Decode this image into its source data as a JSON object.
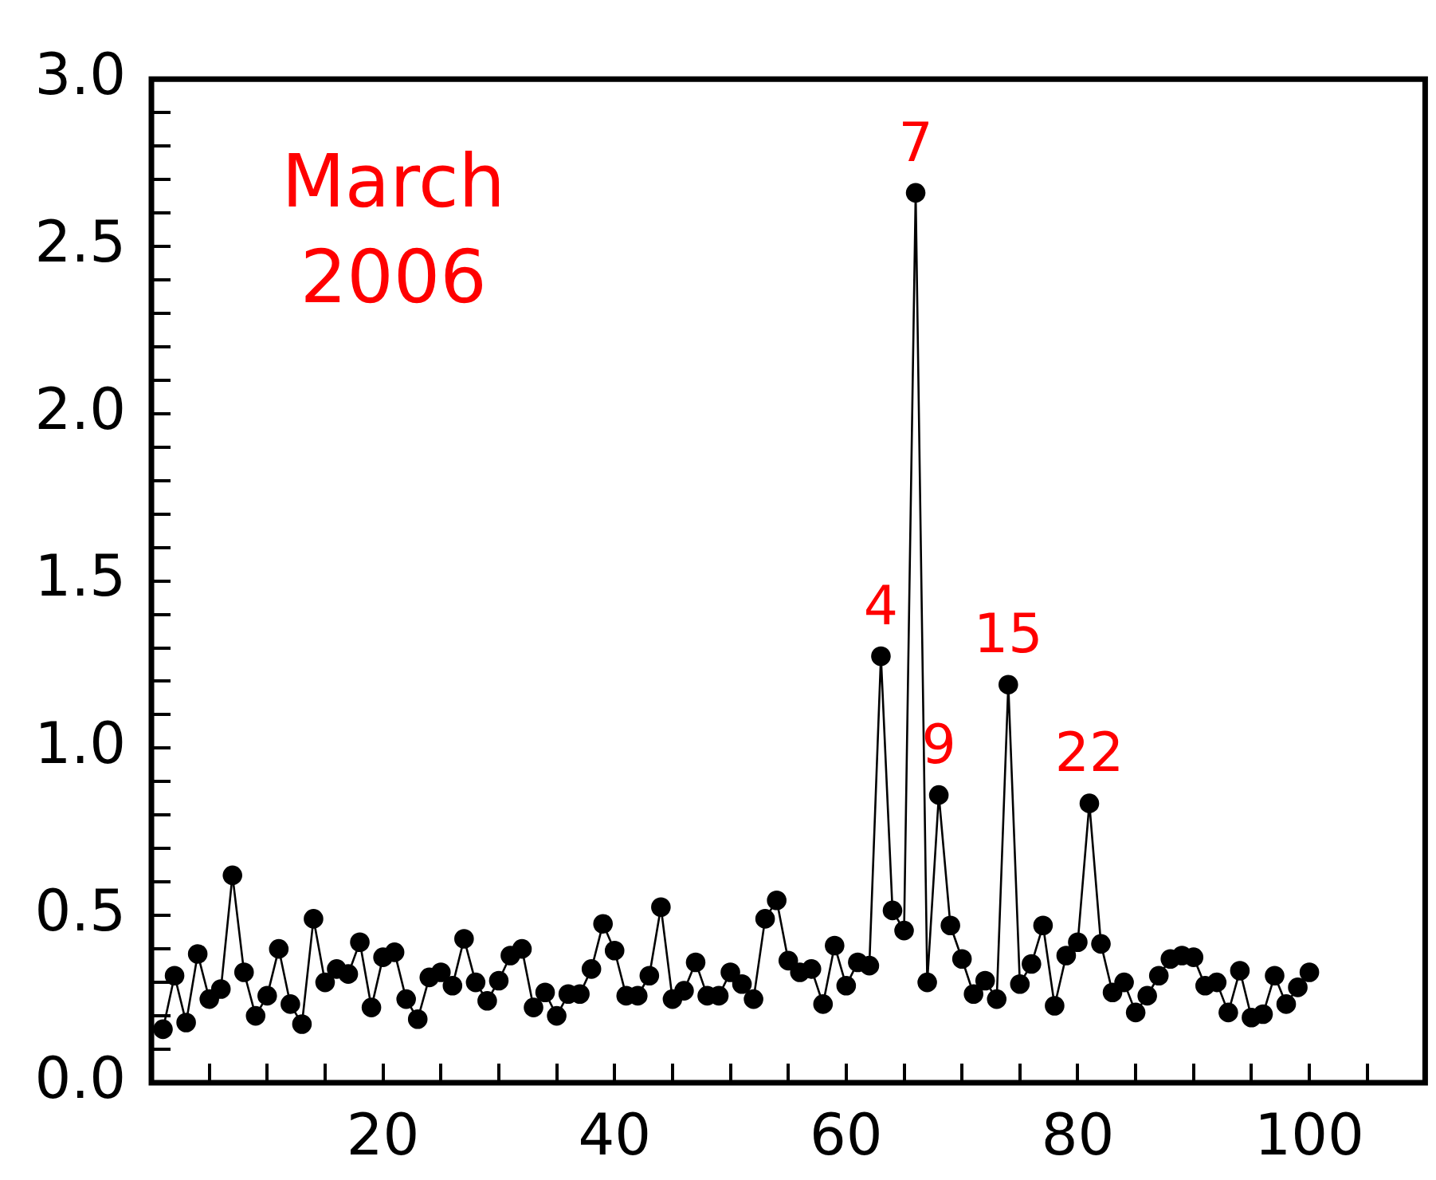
{
  "chart_data": {
    "type": "line",
    "marker": "circle",
    "line_style": "solid",
    "x": [
      1,
      2,
      3,
      4,
      5,
      6,
      7,
      8,
      9,
      10,
      11,
      12,
      13,
      14,
      15,
      16,
      17,
      18,
      19,
      20,
      21,
      22,
      23,
      24,
      25,
      26,
      27,
      28,
      29,
      30,
      31,
      32,
      33,
      34,
      35,
      36,
      37,
      38,
      39,
      40,
      41,
      42,
      43,
      44,
      45,
      46,
      47,
      48,
      49,
      50,
      51,
      52,
      53,
      54,
      55,
      56,
      57,
      58,
      59,
      60,
      61,
      62,
      63,
      64,
      65,
      66,
      67,
      68,
      69,
      70,
      71,
      72,
      73,
      74,
      75,
      76,
      77,
      78,
      79,
      80,
      81,
      82,
      83,
      84,
      85,
      86,
      87,
      88,
      89,
      90,
      91,
      92,
      93,
      94,
      95,
      96,
      97,
      98,
      99,
      100
    ],
    "series": [
      {
        "color": "#000000",
        "values": [
          0.16,
          0.32,
          0.18,
          0.385,
          0.25,
          0.28,
          0.62,
          0.33,
          0.2,
          0.26,
          0.4,
          0.235,
          0.175,
          0.49,
          0.3,
          0.34,
          0.325,
          0.42,
          0.225,
          0.375,
          0.39,
          0.25,
          0.19,
          0.315,
          0.33,
          0.29,
          0.43,
          0.3,
          0.245,
          0.305,
          0.38,
          0.4,
          0.225,
          0.27,
          0.2,
          0.265,
          0.265,
          0.34,
          0.475,
          0.395,
          0.26,
          0.26,
          0.32,
          0.525,
          0.25,
          0.275,
          0.36,
          0.26,
          0.26,
          0.33,
          0.295,
          0.25,
          0.49,
          0.545,
          0.365,
          0.33,
          0.34,
          0.235,
          0.41,
          0.29,
          0.36,
          0.35,
          1.275,
          0.515,
          0.455,
          2.66,
          0.3,
          0.86,
          0.47,
          0.37,
          0.265,
          0.305,
          0.25,
          1.19,
          0.295,
          0.355,
          0.47,
          0.23,
          0.38,
          0.42,
          0.835,
          0.415,
          0.27,
          0.3,
          0.21,
          0.26,
          0.32,
          0.37,
          0.38,
          0.375,
          0.29,
          0.3,
          0.21,
          0.335,
          0.195,
          0.205,
          0.32,
          0.235,
          0.285,
          0.33
        ]
      }
    ],
    "xlim": [
      0,
      110
    ],
    "xticks": [
      {
        "value": 5,
        "label": null
      },
      {
        "value": 10,
        "label": null
      },
      {
        "value": 15,
        "label": null
      },
      20,
      {
        "value": 25,
        "label": null
      },
      {
        "value": 30,
        "label": null
      },
      {
        "value": 35,
        "label": null
      },
      40,
      {
        "value": 45,
        "label": null
      },
      {
        "value": 50,
        "label": null
      },
      {
        "value": 55,
        "label": null
      },
      60,
      {
        "value": 65,
        "label": null
      },
      {
        "value": 70,
        "label": null
      },
      {
        "value": 75,
        "label": null
      },
      80,
      {
        "value": 85,
        "label": null
      },
      {
        "value": 90,
        "label": null
      },
      {
        "value": 95,
        "label": null
      },
      100,
      {
        "value": 105,
        "label": null
      }
    ],
    "ylim": [
      0,
      3
    ],
    "yticks": [
      {
        "value": 0,
        "label": "0.0"
      },
      {
        "value": 0.1,
        "label": null
      },
      {
        "value": 0.2,
        "label": null
      },
      {
        "value": 0.3,
        "label": null
      },
      {
        "value": 0.4,
        "label": null
      },
      0.5,
      {
        "value": 0.6,
        "label": null
      },
      {
        "value": 0.7,
        "label": null
      },
      {
        "value": 0.8,
        "label": null
      },
      {
        "value": 0.9,
        "label": null
      },
      {
        "value": 1,
        "label": "1.0"
      },
      {
        "value": 1.1,
        "label": null
      },
      {
        "value": 1.2,
        "label": null
      },
      {
        "value": 1.3,
        "label": null
      },
      {
        "value": 1.4,
        "label": null
      },
      1.5,
      {
        "value": 1.6,
        "label": null
      },
      {
        "value": 1.7,
        "label": null
      },
      {
        "value": 1.8,
        "label": null
      },
      {
        "value": 1.9,
        "label": null
      },
      {
        "value": 2,
        "label": "2.0"
      },
      {
        "value": 2.1,
        "label": null
      },
      {
        "value": 2.2,
        "label": null
      },
      {
        "value": 2.3,
        "label": null
      },
      {
        "value": 2.4,
        "label": null
      },
      2.5,
      {
        "value": 2.6,
        "label": null
      },
      {
        "value": 2.7,
        "label": null
      },
      {
        "value": 2.8,
        "label": null
      },
      {
        "value": 2.9,
        "label": null
      },
      {
        "value": 3,
        "label": "3.0"
      }
    ],
    "annotations": [
      "March 2006",
      {
        "text": "4",
        "x": 63,
        "y": 1.275
      },
      {
        "text": "7",
        "x": 66,
        "y": 2.66
      },
      {
        "text": "9",
        "x": 68,
        "y": 0.86
      },
      {
        "text": "15",
        "x": 74,
        "y": 1.19
      },
      {
        "text": "22",
        "x": 81,
        "y": 0.835
      }
    ]
  }
}
